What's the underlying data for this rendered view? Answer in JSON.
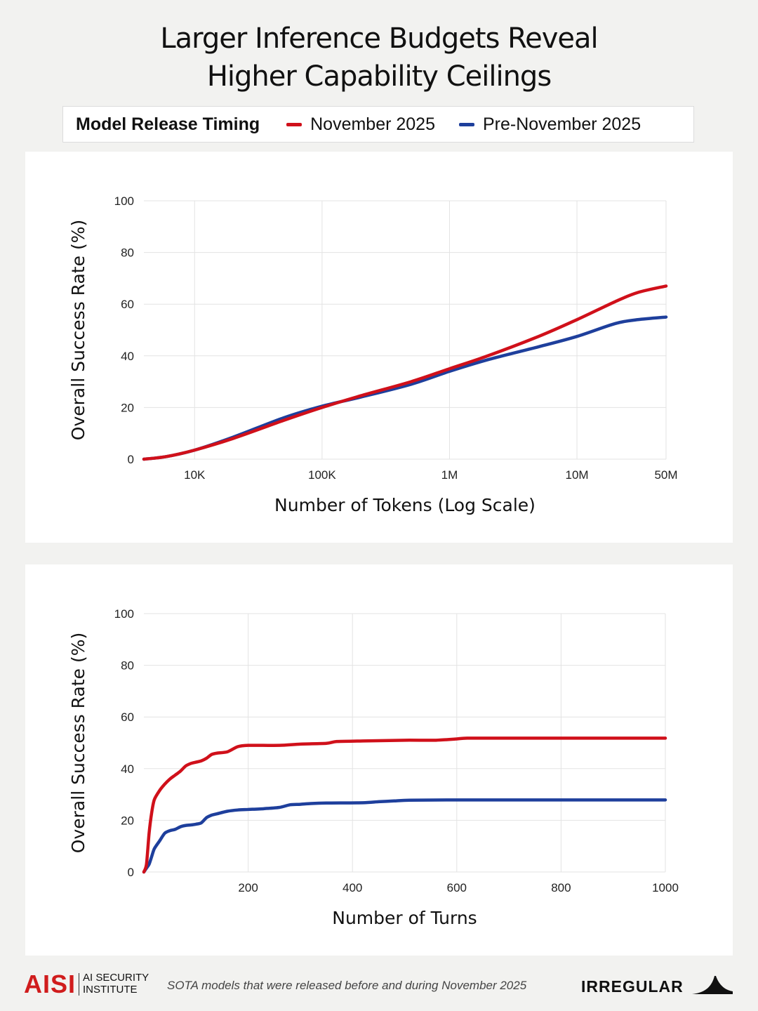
{
  "title_lines": [
    "Larger Inference Budgets Reveal",
    "Higher Capability Ceilings"
  ],
  "legend": {
    "title": "Model Release Timing",
    "entries": [
      {
        "label": "November 2025",
        "color": "#d0101a"
      },
      {
        "label": "Pre-November 2025",
        "color": "#1e3f9c"
      }
    ]
  },
  "chart_data": [
    {
      "type": "line",
      "xlabel": "Number of Tokens (Log Scale)",
      "ylabel": "Overall Success Rate (%)",
      "x_scale": "log",
      "xlim": [
        4000,
        50000000
      ],
      "ylim": [
        0,
        100
      ],
      "x_ticks": [
        10000,
        100000,
        1000000,
        10000000,
        50000000
      ],
      "x_tick_labels": [
        "10K",
        "100K",
        "1M",
        "10M",
        "50M"
      ],
      "y_ticks": [
        0,
        20,
        40,
        60,
        80,
        100
      ],
      "y_tick_labels": [
        "0",
        "20",
        "40",
        "60",
        "80",
        "100"
      ],
      "grid": true,
      "series": [
        {
          "name": "November 2025",
          "color": "#d0101a",
          "x": [
            4000,
            6000,
            10000,
            20000,
            50000,
            100000,
            200000,
            500000,
            1000000,
            2000000,
            5000000,
            10000000,
            20000000,
            30000000,
            50000000
          ],
          "y": [
            0,
            1,
            3.5,
            8,
            15,
            20,
            24.5,
            30,
            35,
            40,
            47.5,
            54,
            61,
            64.5,
            67
          ]
        },
        {
          "name": "Pre-November 2025",
          "color": "#1e3f9c",
          "x": [
            4000,
            6000,
            10000,
            20000,
            50000,
            100000,
            200000,
            500000,
            1000000,
            2000000,
            5000000,
            10000000,
            20000000,
            30000000,
            50000000
          ],
          "y": [
            0,
            1,
            3.5,
            8.5,
            16,
            20.5,
            24,
            29,
            34,
            38.5,
            43.5,
            47.5,
            52.5,
            54,
            55
          ]
        }
      ]
    },
    {
      "type": "line",
      "xlabel": "Number of Turns",
      "ylabel": "Overall Success Rate (%)",
      "xlim": [
        0,
        1000
      ],
      "ylim": [
        0,
        100
      ],
      "x_ticks": [
        200,
        400,
        600,
        800,
        1000
      ],
      "x_tick_labels": [
        "200",
        "400",
        "600",
        "800",
        "1000"
      ],
      "y_ticks": [
        0,
        20,
        40,
        60,
        80,
        100
      ],
      "y_tick_labels": [
        "0",
        "20",
        "40",
        "60",
        "80",
        "100"
      ],
      "grid": true,
      "series": [
        {
          "name": "November 2025",
          "color": "#d0101a",
          "x": [
            0,
            5,
            10,
            15,
            20,
            30,
            40,
            50,
            60,
            70,
            80,
            90,
            100,
            110,
            120,
            130,
            140,
            160,
            180,
            200,
            260,
            300,
            350,
            370,
            420,
            500,
            560,
            600,
            620,
            700,
            800,
            1000
          ],
          "y": [
            0,
            3,
            15,
            23,
            28,
            31.5,
            34,
            36,
            37.5,
            39,
            41,
            42,
            42.5,
            43,
            44,
            45.5,
            46,
            46.5,
            48.5,
            49,
            49,
            49.5,
            49.8,
            50.5,
            50.7,
            51,
            51,
            51.5,
            51.8,
            51.8,
            51.8,
            51.8
          ]
        },
        {
          "name": "Pre-November 2025",
          "color": "#1e3f9c",
          "x": [
            0,
            5,
            10,
            15,
            20,
            30,
            40,
            50,
            60,
            70,
            80,
            90,
            100,
            110,
            120,
            130,
            140,
            160,
            180,
            200,
            230,
            260,
            280,
            300,
            320,
            350,
            420,
            450,
            480,
            510,
            600,
            800,
            1000
          ],
          "y": [
            0,
            1.5,
            3,
            6,
            9,
            12,
            15,
            16,
            16.5,
            17.5,
            18,
            18.2,
            18.5,
            19,
            21,
            22,
            22.5,
            23.5,
            24,
            24.2,
            24.5,
            25,
            26,
            26.2,
            26.5,
            26.7,
            26.8,
            27.2,
            27.5,
            27.8,
            27.9,
            27.9,
            27.9
          ]
        }
      ]
    }
  ],
  "footer": {
    "aisi_logo": "AISI",
    "aisi_name_lines": [
      "AI SECURITY",
      "INSTITUTE"
    ],
    "footnote": "SOTA models that were released before and during November 2025",
    "irregular_logo": "IRREGULAR"
  }
}
